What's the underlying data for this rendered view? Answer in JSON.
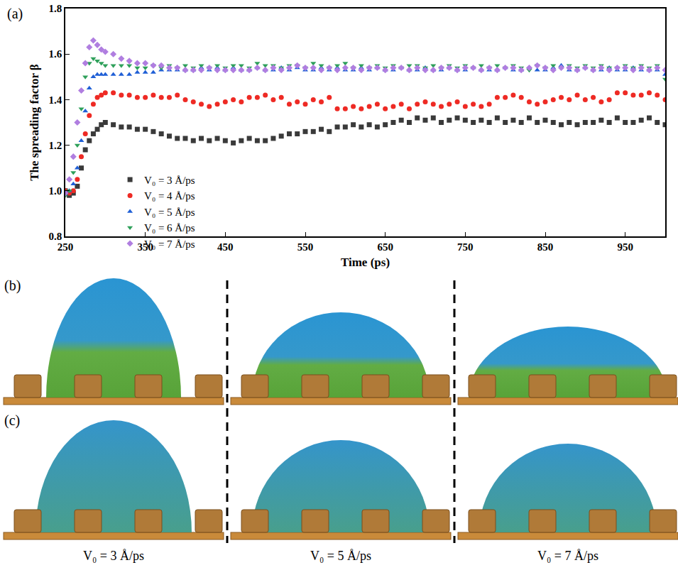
{
  "chart_data": {
    "type": "scatter",
    "x_label": "Time (ps)",
    "y_label": "The spreading factor β",
    "annotations": [
      "(a)"
    ],
    "x": [
      250,
      255,
      260,
      265,
      270,
      275,
      280,
      285,
      290,
      295,
      300,
      310,
      320,
      330,
      340,
      350,
      360,
      370,
      380,
      390,
      400,
      410,
      420,
      430,
      440,
      450,
      460,
      470,
      480,
      490,
      500,
      510,
      520,
      530,
      540,
      550,
      560,
      570,
      580,
      590,
      600,
      610,
      620,
      630,
      640,
      650,
      660,
      670,
      680,
      690,
      700,
      710,
      720,
      730,
      740,
      750,
      760,
      770,
      780,
      790,
      800,
      810,
      820,
      830,
      840,
      850,
      860,
      870,
      880,
      890,
      900,
      910,
      920,
      930,
      940,
      950,
      960,
      970,
      980,
      990,
      1000
    ],
    "series": [
      {
        "name": "V₀ = 3 Å/ps",
        "color": "#3a3a3a",
        "marker": "square",
        "values": [
          1.0,
          0.98,
          0.99,
          1.02,
          1.1,
          1.18,
          1.22,
          1.25,
          1.27,
          1.29,
          1.3,
          1.29,
          1.28,
          1.28,
          1.27,
          1.27,
          1.26,
          1.25,
          1.24,
          1.23,
          1.23,
          1.22,
          1.23,
          1.22,
          1.23,
          1.22,
          1.21,
          1.22,
          1.23,
          1.22,
          1.22,
          1.23,
          1.24,
          1.25,
          1.25,
          1.26,
          1.26,
          1.27,
          1.26,
          1.28,
          1.28,
          1.29,
          1.28,
          1.29,
          1.28,
          1.29,
          1.3,
          1.31,
          1.3,
          1.32,
          1.31,
          1.32,
          1.3,
          1.31,
          1.32,
          1.31,
          1.3,
          1.31,
          1.3,
          1.32,
          1.3,
          1.31,
          1.3,
          1.32,
          1.3,
          1.31,
          1.3,
          1.29,
          1.3,
          1.29,
          1.3,
          1.3,
          1.31,
          1.3,
          1.32,
          1.3,
          1.3,
          1.31,
          1.32,
          1.3,
          1.29
        ]
      },
      {
        "name": "V₀ = 4 Å/ps",
        "color": "#ee2a24",
        "marker": "circle",
        "values": [
          1.0,
          0.99,
          1.0,
          1.05,
          1.15,
          1.25,
          1.33,
          1.38,
          1.41,
          1.42,
          1.43,
          1.43,
          1.42,
          1.42,
          1.41,
          1.41,
          1.42,
          1.41,
          1.41,
          1.42,
          1.4,
          1.39,
          1.38,
          1.37,
          1.38,
          1.39,
          1.4,
          1.39,
          1.41,
          1.41,
          1.42,
          1.4,
          1.41,
          1.38,
          1.39,
          1.38,
          1.4,
          1.39,
          1.41,
          1.36,
          1.36,
          1.37,
          1.36,
          1.37,
          1.38,
          1.36,
          1.37,
          1.38,
          1.36,
          1.38,
          1.39,
          1.38,
          1.37,
          1.38,
          1.39,
          1.37,
          1.38,
          1.37,
          1.38,
          1.41,
          1.41,
          1.42,
          1.41,
          1.39,
          1.38,
          1.39,
          1.4,
          1.41,
          1.4,
          1.42,
          1.4,
          1.41,
          1.39,
          1.4,
          1.43,
          1.43,
          1.42,
          1.42,
          1.43,
          1.42,
          1.4
        ]
      },
      {
        "name": "V₀ = 5 Å/ps",
        "color": "#1f5fd6",
        "marker": "triangle-up",
        "values": [
          0.99,
          1.0,
          1.03,
          1.1,
          1.22,
          1.35,
          1.45,
          1.5,
          1.51,
          1.51,
          1.51,
          1.51,
          1.51,
          1.51,
          1.52,
          1.52,
          1.52,
          1.53,
          1.53,
          1.53,
          1.53,
          1.53,
          1.54,
          1.53,
          1.54,
          1.53,
          1.54,
          1.53,
          1.53,
          1.54,
          1.53,
          1.53,
          1.54,
          1.53,
          1.54,
          1.53,
          1.53,
          1.54,
          1.53,
          1.54,
          1.53,
          1.53,
          1.54,
          1.53,
          1.54,
          1.53,
          1.53,
          1.54,
          1.53,
          1.53,
          1.54,
          1.53,
          1.53,
          1.54,
          1.53,
          1.53,
          1.54,
          1.53,
          1.53,
          1.53,
          1.54,
          1.53,
          1.53,
          1.54,
          1.53,
          1.53,
          1.54,
          1.55,
          1.53,
          1.53,
          1.54,
          1.53,
          1.53,
          1.54,
          1.53,
          1.53,
          1.54,
          1.53,
          1.53,
          1.53,
          1.51
        ]
      },
      {
        "name": "V₀ = 6 Å/ps",
        "color": "#2ea05a",
        "marker": "triangle-down",
        "values": [
          0.98,
          1.0,
          1.08,
          1.2,
          1.36,
          1.5,
          1.56,
          1.58,
          1.57,
          1.56,
          1.55,
          1.55,
          1.55,
          1.55,
          1.54,
          1.54,
          1.55,
          1.54,
          1.55,
          1.54,
          1.55,
          1.54,
          1.55,
          1.54,
          1.55,
          1.54,
          1.55,
          1.55,
          1.54,
          1.56,
          1.55,
          1.55,
          1.54,
          1.55,
          1.55,
          1.54,
          1.56,
          1.55,
          1.54,
          1.55,
          1.56,
          1.54,
          1.55,
          1.54,
          1.55,
          1.54,
          1.55,
          1.54,
          1.55,
          1.55,
          1.54,
          1.55,
          1.54,
          1.55,
          1.54,
          1.55,
          1.54,
          1.55,
          1.54,
          1.55,
          1.54,
          1.55,
          1.54,
          1.53,
          1.55,
          1.54,
          1.55,
          1.54,
          1.55,
          1.54,
          1.55,
          1.54,
          1.55,
          1.54,
          1.54,
          1.55,
          1.54,
          1.55,
          1.54,
          1.55,
          1.49
        ]
      },
      {
        "name": "V₀ = 7 Å/ps",
        "color": "#b07ee0",
        "marker": "diamond",
        "values": [
          0.99,
          1.05,
          1.15,
          1.3,
          1.44,
          1.56,
          1.63,
          1.66,
          1.64,
          1.62,
          1.61,
          1.6,
          1.58,
          1.57,
          1.56,
          1.56,
          1.55,
          1.55,
          1.54,
          1.54,
          1.53,
          1.53,
          1.53,
          1.54,
          1.53,
          1.53,
          1.53,
          1.53,
          1.53,
          1.54,
          1.53,
          1.54,
          1.53,
          1.54,
          1.55,
          1.54,
          1.54,
          1.53,
          1.54,
          1.53,
          1.54,
          1.54,
          1.53,
          1.54,
          1.54,
          1.53,
          1.54,
          1.54,
          1.53,
          1.54,
          1.53,
          1.53,
          1.54,
          1.54,
          1.53,
          1.54,
          1.54,
          1.53,
          1.54,
          1.53,
          1.54,
          1.54,
          1.53,
          1.54,
          1.55,
          1.54,
          1.53,
          1.54,
          1.54,
          1.53,
          1.54,
          1.53,
          1.54,
          1.53,
          1.54,
          1.54,
          1.53,
          1.54,
          1.53,
          1.54,
          1.53
        ]
      }
    ],
    "xlim": [
      250,
      1000
    ],
    "xticks": [
      250,
      350,
      450,
      550,
      650,
      750,
      850,
      950
    ],
    "ylim": [
      0.8,
      1.8
    ],
    "yticks": [
      0.8,
      {
        "value": 1,
        "label": "1.0"
      },
      1.2,
      1.4,
      1.6,
      1.8
    ],
    "grid": false,
    "legend": "lower right"
  },
  "images": {
    "rows": [
      "(b)",
      "(c)"
    ],
    "columns": [
      "V₀ = 3 Å/ps",
      "V₀ = 5 Å/ps",
      "V₀ = 7 Å/ps"
    ]
  }
}
